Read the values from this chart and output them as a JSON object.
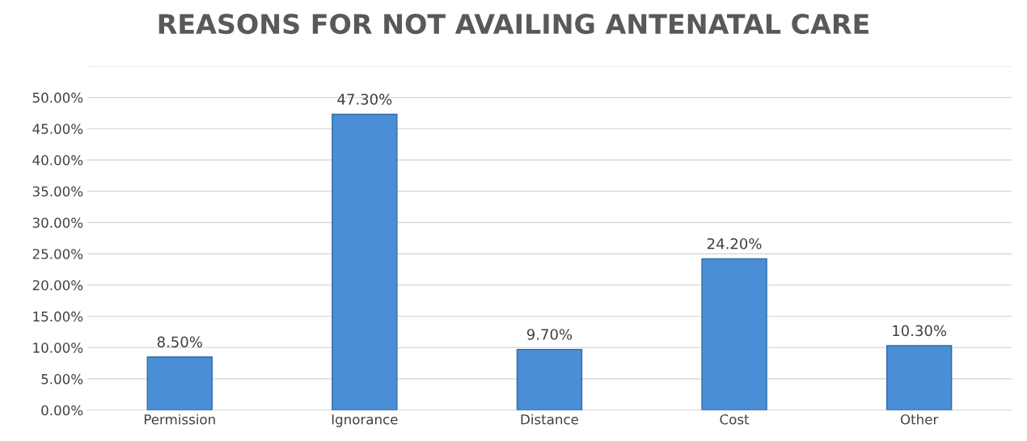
{
  "chart_data": {
    "type": "bar",
    "title": "REASONS FOR NOT AVAILING ANTENATAL CARE",
    "categories": [
      "Permission",
      "Ignorance",
      "Distance",
      "Cost",
      "Other"
    ],
    "values": [
      8.5,
      47.3,
      9.7,
      24.2,
      10.3
    ],
    "value_labels": [
      "8.50%",
      "47.30%",
      "9.70%",
      "24.20%",
      "10.30%"
    ],
    "color": "#4a8fd6",
    "ylim": [
      0,
      55
    ],
    "yticks": [
      {
        "value": 0,
        "label": "0.00%"
      },
      {
        "value": 5,
        "label": "5.00%"
      },
      {
        "value": 10,
        "label": "10.00%"
      },
      {
        "value": 15,
        "label": "15.00%"
      },
      {
        "value": 20,
        "label": "20.00%"
      },
      {
        "value": 25,
        "label": "25.00%"
      },
      {
        "value": 30,
        "label": "30.00%"
      },
      {
        "value": 35,
        "label": "35.00%"
      },
      {
        "value": 40,
        "label": "40.00%"
      },
      {
        "value": 45,
        "label": "45.00%"
      },
      {
        "value": 50,
        "label": "50.00%"
      }
    ],
    "grid": "y"
  }
}
